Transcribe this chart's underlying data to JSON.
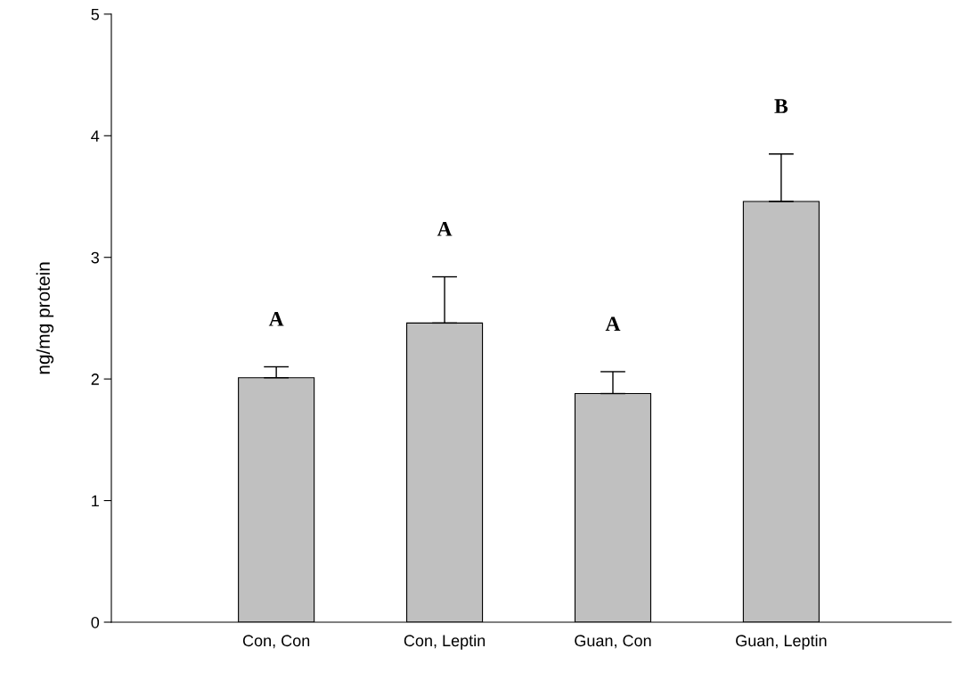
{
  "chart_data": {
    "type": "bar",
    "ylabel": "ng/mg protein",
    "categories": [
      "Con, Con",
      "Con, Leptin",
      "Guan, Con",
      "Guan, Leptin"
    ],
    "values": [
      2.01,
      2.46,
      1.88,
      3.46
    ],
    "errors": [
      [
        2.01,
        2.1
      ],
      [
        2.46,
        2.84
      ],
      [
        1.88,
        2.06
      ],
      [
        3.46,
        3.85
      ]
    ],
    "color": "#c0c0c0",
    "ylim": [
      0,
      5
    ],
    "yticks": [
      0,
      1,
      2,
      3,
      4,
      5
    ],
    "annotations": [
      "A",
      "A",
      "A",
      "B"
    ]
  }
}
